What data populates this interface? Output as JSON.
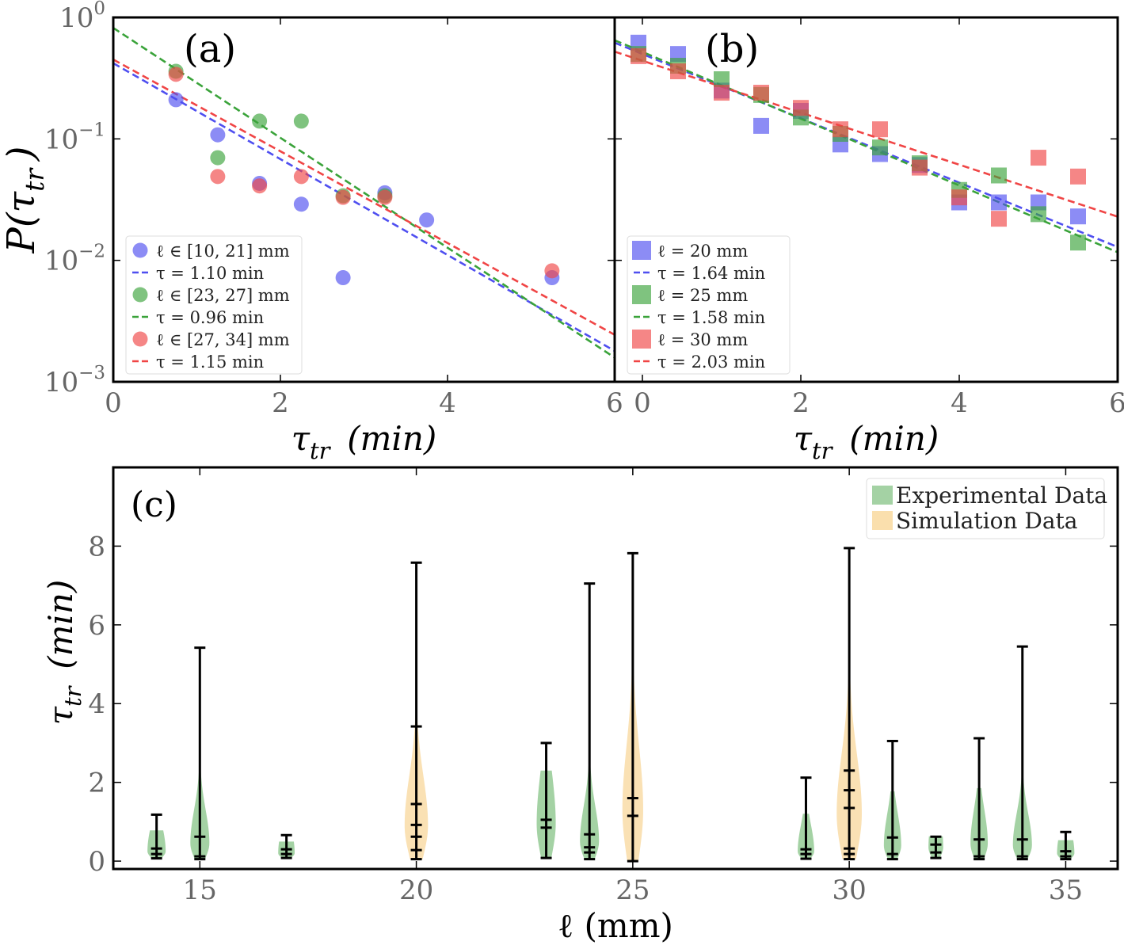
{
  "chart_data": [
    {
      "id": "a",
      "type": "scatter",
      "panel_label": "(a)",
      "xlabel": "τ_tr (min)",
      "ylabel": "P(τ_tr)",
      "x_axis": {
        "lim": [
          0,
          6.0
        ],
        "ticks": [
          0,
          2,
          4,
          6
        ],
        "tick_labels": [
          "0",
          "2",
          "4",
          "6"
        ]
      },
      "y_axis": {
        "scale": "log",
        "lim": [
          0.001,
          1
        ],
        "ticks": [
          0.001,
          0.01,
          0.1,
          1
        ],
        "tick_labels": [
          {
            "base": "10",
            "exp": "−3"
          },
          {
            "base": "10",
            "exp": "−2"
          },
          {
            "base": "10",
            "exp": "−1"
          },
          {
            "base": "10",
            "exp": "0"
          }
        ]
      },
      "legend_position": "bottom-left",
      "series": [
        {
          "name": "ℓ ∈ [10, 21] mm",
          "color": "#4f4ff0",
          "marker": "circle",
          "x": [
            0.75,
            1.25,
            1.75,
            2.25,
            2.75,
            3.25,
            3.75,
            5.25
          ],
          "y": [
            0.21,
            0.108,
            0.043,
            0.029,
            0.0072,
            0.036,
            0.0215,
            0.0072
          ],
          "fit": {
            "label": "τ = 1.10 min",
            "y0": 0.42,
            "tau": 1.1
          }
        },
        {
          "name": "ℓ ∈ [23, 27] mm",
          "color": "#3aa33a",
          "marker": "circle",
          "x": [
            0.75,
            1.25,
            1.75,
            2.25,
            2.75,
            3.25
          ],
          "y": [
            0.36,
            0.07,
            0.14,
            0.14,
            0.034,
            0.034
          ],
          "fit": {
            "label": "τ = 0.96 min",
            "y0": 0.82,
            "tau": 0.96
          }
        },
        {
          "name": "ℓ ∈ [27, 34] mm",
          "color": "#f04545",
          "marker": "circle",
          "x": [
            0.75,
            1.25,
            1.75,
            2.25,
            2.75,
            3.25,
            5.25
          ],
          "y": [
            0.34,
            0.049,
            0.041,
            0.049,
            0.033,
            0.033,
            0.0082
          ],
          "fit": {
            "label": "τ = 1.15 min",
            "y0": 0.45,
            "tau": 1.15
          }
        }
      ]
    },
    {
      "id": "b",
      "type": "scatter",
      "panel_label": "(b)",
      "xlabel": "τ_tr (min)",
      "ylabel": "",
      "x_axis": {
        "lim": [
          -0.35,
          6.0
        ],
        "ticks": [
          0,
          2,
          4,
          6
        ],
        "tick_labels": [
          "0",
          "2",
          "4",
          "6"
        ]
      },
      "y_axis": {
        "scale": "log",
        "lim": [
          0.001,
          1
        ],
        "ticks": [
          0.001,
          0.01,
          0.1,
          1
        ],
        "tick_labels": []
      },
      "legend_position": "bottom-left",
      "series": [
        {
          "name": "ℓ = 20 mm",
          "color": "#4f4ff0",
          "marker": "square",
          "x": [
            -0.05,
            0.45,
            1.0,
            1.5,
            2.0,
            2.5,
            3.0,
            3.5,
            4.0,
            4.5,
            5.0,
            5.5
          ],
          "y": [
            0.62,
            0.5,
            0.25,
            0.128,
            0.17,
            0.09,
            0.075,
            0.061,
            0.03,
            0.03,
            0.03,
            0.023
          ],
          "fit": {
            "label": "τ = 1.64 min",
            "y0": 0.5,
            "tau": 1.64
          }
        },
        {
          "name": "ℓ = 25 mm",
          "color": "#3aa33a",
          "marker": "square",
          "x": [
            -0.05,
            0.45,
            1.0,
            1.5,
            2.0,
            2.5,
            3.0,
            3.5,
            4.0,
            4.5,
            5.0,
            5.5
          ],
          "y": [
            0.5,
            0.4,
            0.31,
            0.23,
            0.15,
            0.11,
            0.085,
            0.063,
            0.038,
            0.05,
            0.024,
            0.014
          ],
          "fit": {
            "label": "τ = 1.58 min",
            "y0": 0.52,
            "tau": 1.58
          }
        },
        {
          "name": "ℓ = 30 mm",
          "color": "#f04545",
          "marker": "square",
          "x": [
            -0.05,
            0.45,
            1.0,
            1.5,
            2.0,
            2.5,
            3.0,
            3.5,
            4.0,
            4.5,
            5.0,
            5.5
          ],
          "y": [
            0.48,
            0.36,
            0.24,
            0.24,
            0.18,
            0.12,
            0.12,
            0.058,
            0.033,
            0.022,
            0.07,
            0.049
          ],
          "fit": {
            "label": "τ = 2.03 min",
            "y0": 0.44,
            "tau": 2.03
          }
        }
      ]
    },
    {
      "id": "c",
      "type": "violin",
      "panel_label": "(c)",
      "xlabel": "ℓ (mm)",
      "ylabel": "τ_tr (min)",
      "x_axis": {
        "lim": [
          13.0,
          36.2
        ],
        "ticks": [
          15,
          20,
          25,
          30,
          35
        ],
        "tick_labels": [
          "15",
          "20",
          "25",
          "30",
          "35"
        ]
      },
      "y_axis": {
        "lim": [
          -0.2,
          10.0
        ],
        "ticks": [
          0,
          2,
          4,
          6,
          8
        ],
        "tick_labels": [
          "0",
          "2",
          "4",
          "6",
          "8"
        ]
      },
      "legend_position": "top-right",
      "series": [
        {
          "name": "Experimental Data",
          "color": "#5aad5a"
        },
        {
          "name": "Simulation Data",
          "color": "#f5c46a"
        }
      ],
      "violins": [
        {
          "x": 14,
          "kind": "exp",
          "min": 0.07,
          "max": 1.18,
          "ticks": [
            0.18,
            0.32
          ],
          "peak": 0.25,
          "width": 0.21
        },
        {
          "x": 15,
          "kind": "exp",
          "min": 0.05,
          "max": 5.42,
          "ticks": [
            0.12,
            0.62
          ],
          "peak": 0.45,
          "width": 0.22
        },
        {
          "x": 17,
          "kind": "exp",
          "min": 0.08,
          "max": 0.66,
          "ticks": [
            0.18,
            0.3
          ],
          "peak": 0.2,
          "width": 0.19
        },
        {
          "x": 20,
          "kind": "sim",
          "min": 0.05,
          "max": 7.58,
          "ticks": [
            0.28,
            0.62,
            0.92,
            1.45,
            3.42
          ],
          "peak": 0.9,
          "width": 0.27
        },
        {
          "x": 23,
          "kind": "exp",
          "min": 0.08,
          "max": 3.0,
          "ticks": [
            0.85,
            1.05
          ],
          "peak": 0.95,
          "width": 0.22
        },
        {
          "x": 24,
          "kind": "exp",
          "min": 0.05,
          "max": 7.05,
          "ticks": [
            0.22,
            0.35,
            0.68
          ],
          "peak": 0.5,
          "width": 0.22
        },
        {
          "x": 25,
          "kind": "sim",
          "min": 0.0,
          "max": 7.82,
          "ticks": [
            1.15,
            1.6
          ],
          "peak": 1.3,
          "width": 0.24
        },
        {
          "x": 29,
          "kind": "exp",
          "min": 0.06,
          "max": 2.12,
          "ticks": [
            0.18,
            0.3
          ],
          "peak": 0.25,
          "width": 0.19
        },
        {
          "x": 30,
          "kind": "sim",
          "min": 0.05,
          "max": 7.95,
          "ticks": [
            0.18,
            0.32,
            1.35,
            1.8,
            2.3
          ],
          "peak": 1.2,
          "width": 0.29
        },
        {
          "x": 31,
          "kind": "exp",
          "min": 0.05,
          "max": 3.05,
          "ticks": [
            0.18,
            0.6
          ],
          "peak": 0.4,
          "width": 0.2
        },
        {
          "x": 32,
          "kind": "exp",
          "min": 0.08,
          "max": 0.62,
          "ticks": [
            0.22,
            0.42
          ],
          "peak": 0.35,
          "width": 0.17
        },
        {
          "x": 33,
          "kind": "exp",
          "min": 0.05,
          "max": 3.12,
          "ticks": [
            0.12,
            0.55
          ],
          "peak": 0.45,
          "width": 0.2
        },
        {
          "x": 34,
          "kind": "exp",
          "min": 0.05,
          "max": 5.45,
          "ticks": [
            0.12,
            0.55
          ],
          "peak": 0.4,
          "width": 0.22
        },
        {
          "x": 35,
          "kind": "exp",
          "min": 0.05,
          "max": 0.74,
          "ticks": [
            0.12,
            0.25
          ],
          "peak": 0.2,
          "width": 0.2
        }
      ]
    }
  ]
}
